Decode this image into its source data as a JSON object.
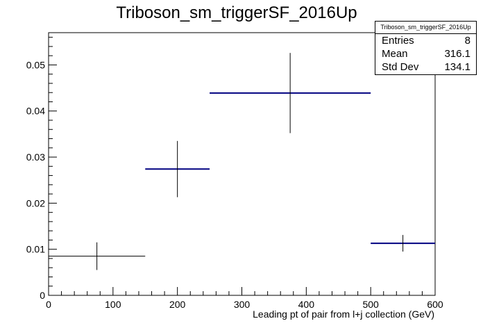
{
  "chart_data": {
    "type": "histogram",
    "title": "Triboson_sm_triggerSF_2016Up",
    "xlabel": "Leading pt of pair from l+j collection (GeV)",
    "ylabel": "",
    "xlim": [
      0,
      600
    ],
    "ylim": [
      0,
      0.057
    ],
    "x_ticks": [
      0,
      100,
      200,
      300,
      400,
      500,
      600
    ],
    "y_ticks": [
      0,
      0.01,
      0.02,
      0.03,
      0.04,
      0.05
    ],
    "y_tick_labels": [
      "0",
      "0.01",
      "0.02",
      "0.03",
      "0.04",
      "0.05"
    ],
    "grid": false,
    "bins": [
      {
        "xlow": 0,
        "xhigh": 150,
        "center": 75,
        "value": 0.0085,
        "err_low": 0.0055,
        "err_high": 0.0115,
        "color": "#000000"
      },
      {
        "xlow": 150,
        "xhigh": 250,
        "center": 200,
        "value": 0.0274,
        "err_low": 0.0213,
        "err_high": 0.0335,
        "color": "#000080"
      },
      {
        "xlow": 250,
        "xhigh": 500,
        "center": 375,
        "value": 0.0439,
        "err_low": 0.0352,
        "err_high": 0.0526,
        "color": "#000080"
      },
      {
        "xlow": 500,
        "xhigh": 600,
        "center": 550,
        "value": 0.0113,
        "err_low": 0.0095,
        "err_high": 0.0131,
        "color": "#000080"
      }
    ]
  },
  "stats": {
    "title": "Triboson_sm_triggerSF_2016Up",
    "rows": [
      {
        "label": "Entries",
        "value": "8"
      },
      {
        "label": "Mean",
        "value": "316.1"
      },
      {
        "label": "Std Dev",
        "value": "134.1"
      }
    ]
  }
}
